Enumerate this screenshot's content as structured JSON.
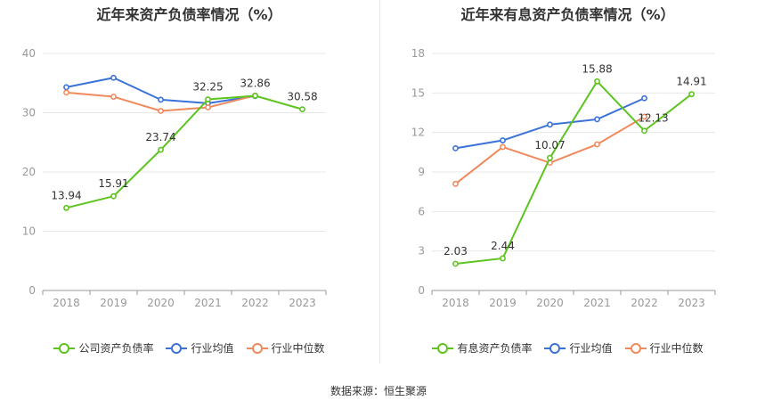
{
  "charts": [
    {
      "title": "近年来资产负债率情况（%）",
      "legend": [
        "公司资产负债率",
        "行业均值",
        "行业中位数"
      ]
    },
    {
      "title": "近年来有息资产负债率情况（%）",
      "legend": [
        "有息资产负债率",
        "行业均值",
        "行业中位数"
      ]
    }
  ],
  "source": "数据来源：恒生聚源",
  "colors": {
    "company": "#5dc41f",
    "industry_avg": "#3a72d8",
    "industry_median": "#f08a5d",
    "grid": "#e8e8e8",
    "axis": "#999999",
    "tick_text": "#999999",
    "label_text": "#333333"
  },
  "chart_data": [
    {
      "type": "line",
      "title": "近年来资产负债率情况（%）",
      "categories": [
        "2018",
        "2019",
        "2020",
        "2021",
        "2022",
        "2023"
      ],
      "ylim": [
        0,
        40
      ],
      "yticks": [
        0,
        10,
        20,
        30,
        40
      ],
      "grid": true,
      "legend_position": "bottom",
      "series": [
        {
          "name": "公司资产负债率",
          "values": [
            13.94,
            15.91,
            23.74,
            32.25,
            32.86,
            30.58
          ],
          "labels": [
            "13.94",
            "15.91",
            "23.74",
            "32.25",
            "32.86",
            "30.58"
          ]
        },
        {
          "name": "行业均值",
          "values": [
            34.3,
            35.9,
            32.2,
            31.6,
            32.8,
            null
          ]
        },
        {
          "name": "行业中位数",
          "values": [
            33.4,
            32.7,
            30.3,
            30.9,
            32.9,
            null
          ]
        }
      ]
    },
    {
      "type": "line",
      "title": "近年来有息资产负债率情况（%）",
      "categories": [
        "2018",
        "2019",
        "2020",
        "2021",
        "2022",
        "2023"
      ],
      "ylim": [
        0,
        18
      ],
      "yticks": [
        0,
        3,
        6,
        9,
        12,
        15,
        18
      ],
      "grid": true,
      "legend_position": "bottom",
      "series": [
        {
          "name": "有息资产负债率",
          "values": [
            2.03,
            2.44,
            10.07,
            15.88,
            12.13,
            14.91
          ],
          "labels": [
            "2.03",
            "2.44",
            "10.07",
            "15.88",
            "12.13",
            "14.91"
          ]
        },
        {
          "name": "行业均值",
          "values": [
            10.8,
            11.4,
            12.6,
            13.0,
            14.6,
            null
          ]
        },
        {
          "name": "行业中位数",
          "values": [
            8.1,
            10.9,
            9.7,
            11.1,
            13.2,
            null
          ]
        }
      ]
    }
  ]
}
